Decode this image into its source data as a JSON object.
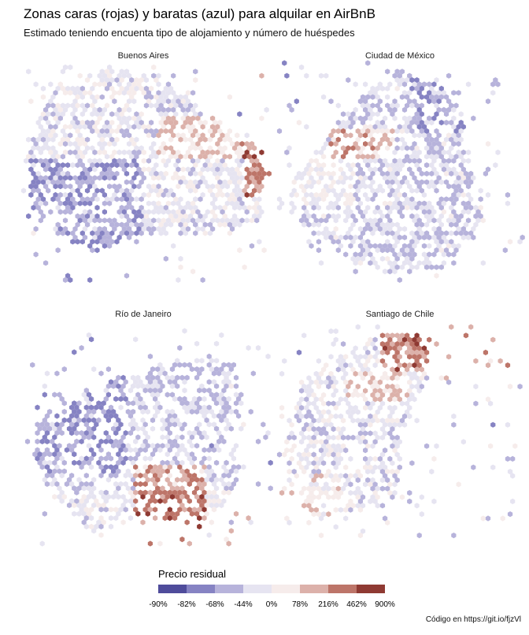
{
  "title": "Zonas caras (rojas) y baratas (azul) para alquilar en AirBnB",
  "subtitle": "Estimado teniendo encuenta tipo de alojamiento y número de huéspedes",
  "caption": "Código en https://git.io/fjzVl",
  "chart_data": {
    "type": "heatmap",
    "geometry": "hexbin map, faceted by city",
    "facets": [
      "Buenos Aires",
      "Ciudad de México",
      "Río de Janeiro",
      "Santiago de Chile"
    ],
    "legend": {
      "title": "Precio residual",
      "position": "bottom",
      "ticks": [
        "-90%",
        "-82%",
        "-68%",
        "-44%",
        "0%",
        "78%",
        "216%",
        "462%",
        "900%"
      ],
      "colors": [
        "#4f4c9b",
        "#8683c3",
        "#b7b3db",
        "#e6e4f1",
        "#f6eceb",
        "#dcb1aa",
        "#bd7569",
        "#8f3a33"
      ]
    }
  }
}
